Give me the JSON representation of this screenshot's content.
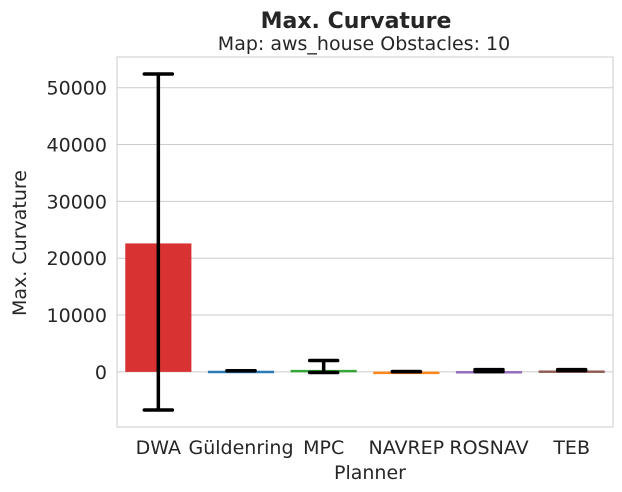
{
  "chart_data": {
    "type": "bar",
    "title": "Max. Curvature",
    "subtitle": "Map: aws_house Obstacles: 10",
    "xlabel": "Planner",
    "ylabel": "Max. Curvature",
    "ylim": [
      -9700,
      55400
    ],
    "yticks": [
      0,
      10000,
      20000,
      30000,
      40000,
      50000
    ],
    "ytick_labels": [
      "0",
      "10000",
      "20000",
      "30000",
      "40000",
      "50000"
    ],
    "grid": true,
    "categories": [
      "DWA",
      "Güldenring",
      "MPC",
      "NAVREP",
      "ROSNAV",
      "TEB"
    ],
    "values": [
      22600,
      200,
      350,
      50,
      150,
      250
    ],
    "error_low": [
      -6700,
      200,
      -100,
      50,
      50,
      250
    ],
    "error_high": [
      52400,
      200,
      2000,
      50,
      400,
      400
    ],
    "colors": [
      "#d62728",
      "#1f77b4",
      "#2ca02c",
      "#ff7f0e",
      "#9467bd",
      "#8c564b"
    ],
    "error_color": "#000000"
  }
}
